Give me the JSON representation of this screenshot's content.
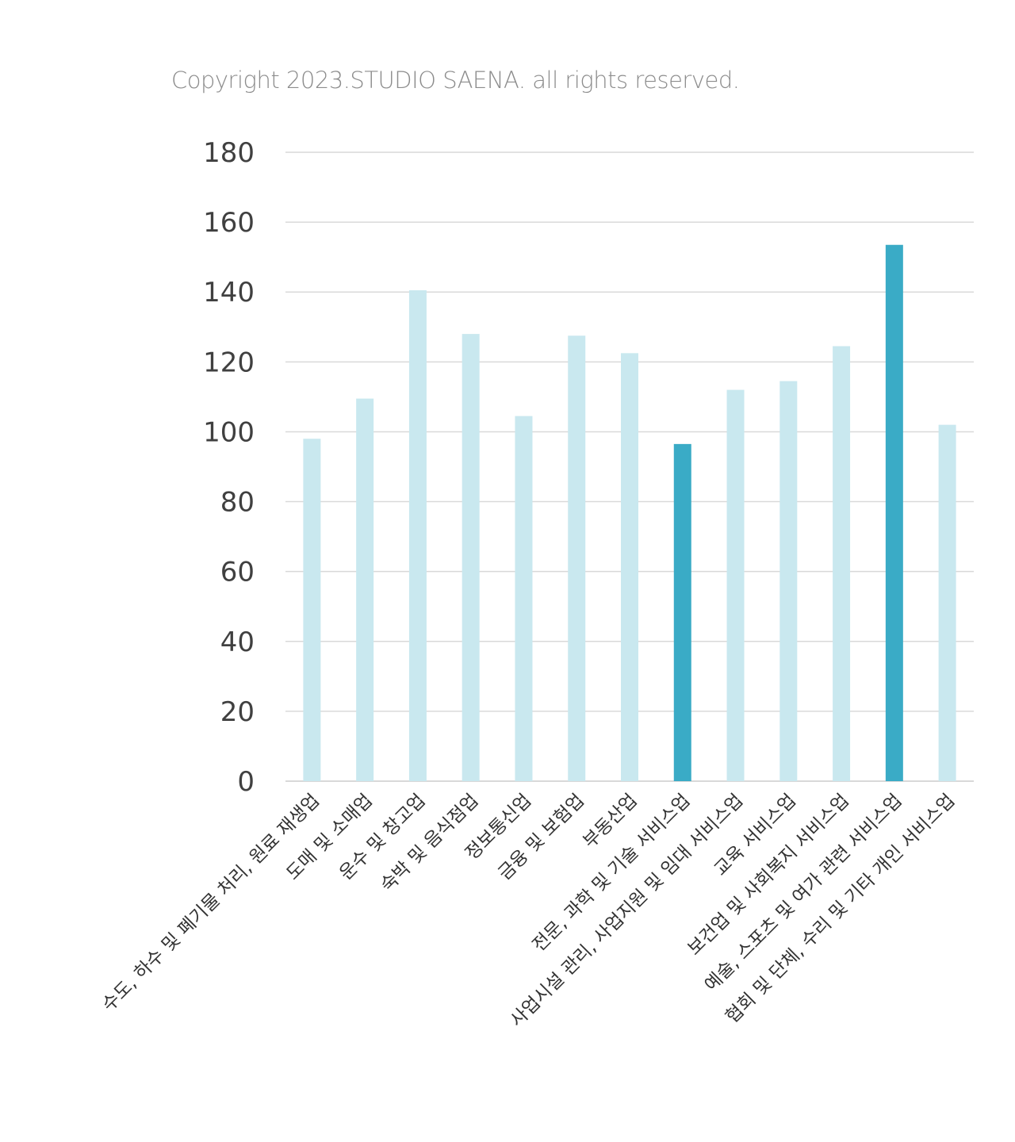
{
  "copyright": "Copyright 2023.STUDIO SAENA. all rights reserved.",
  "colors": {
    "bar_default": "#c9e8ef",
    "bar_highlight": "#3aabc6",
    "gridline": "#d9d9d9",
    "axis_text": "#404040"
  },
  "chart_data": {
    "type": "bar",
    "title": "",
    "xlabel": "",
    "ylabel": "",
    "ylim": [
      0,
      180
    ],
    "yticks": [
      0,
      20,
      40,
      60,
      80,
      100,
      120,
      140,
      160,
      180
    ],
    "grid": true,
    "categories": [
      "수도, 하수 및 폐기물 처리, 원료 재생업",
      "도매 및 소매업",
      "운수 및 창고업",
      "숙박 및 음식점업",
      "정보통신업",
      "금융 및 보험업",
      "부동산업",
      "전문, 과학 및 기술 서비스업",
      "사업시설 관리, 사업지원 및 임대 서비스업",
      "교육 서비스업",
      "보건업 및 사회복지 서비스업",
      "예술, 스포츠 및 여가 관련 서비스업",
      "협회 및 단체, 수리 및 기타 개인 서비스업"
    ],
    "values": [
      98,
      109.5,
      140.5,
      128,
      104.5,
      127.5,
      122.5,
      96.5,
      112,
      114.5,
      124.5,
      153.5,
      102
    ],
    "highlight": [
      false,
      false,
      false,
      false,
      false,
      false,
      false,
      true,
      false,
      false,
      false,
      true,
      false
    ]
  }
}
